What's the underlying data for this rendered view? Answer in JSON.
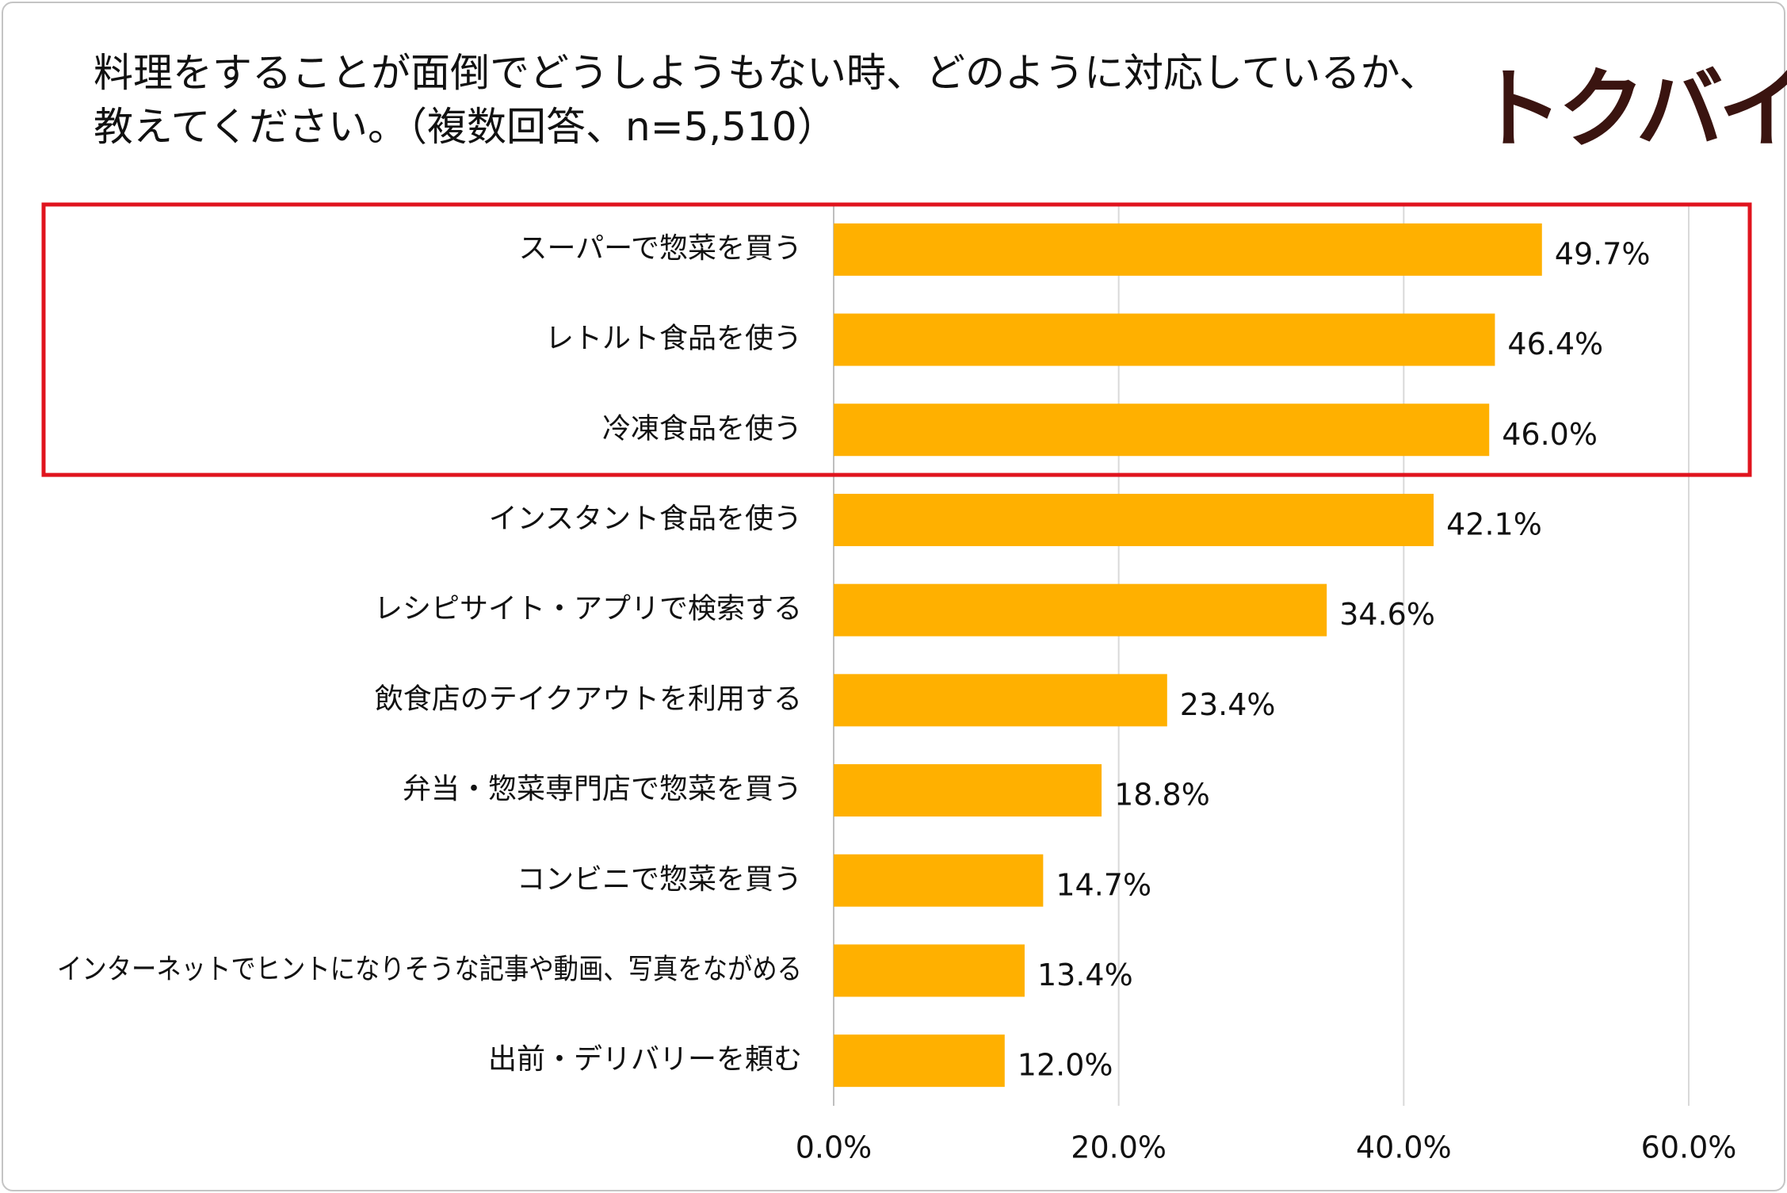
{
  "title": {
    "line1": "料理をすることが面倒でどうしようもない時、どのように対応しているか、",
    "line2": "教えてください。（複数回答、n=5,510）"
  },
  "logo": {
    "text": "トクバイ"
  },
  "colors": {
    "bar": "#FFB000",
    "highlight_box": "#E0141E",
    "grid": "#D9D9D9",
    "axis": "#BFBFBF",
    "text": "#111111"
  },
  "highlight": {
    "first_index": 0,
    "last_index": 2
  },
  "chart_data": {
    "type": "bar",
    "orientation": "horizontal",
    "categories": [
      "スーパーで惣菜を買う",
      "レトルト食品を使う",
      "冷凍食品を使う",
      "インスタント食品を使う",
      "レシピサイト・アプリで検索する",
      "飲食店のテイクアウトを利用する",
      "弁当・惣菜専門店で惣菜を買う",
      "コンビニで惣菜を買う",
      "インターネットでヒントになりそうな記事や動画、写真をながめる",
      "出前・デリバリーを頼む"
    ],
    "values": [
      49.7,
      46.4,
      46.0,
      42.1,
      34.6,
      23.4,
      18.8,
      14.7,
      13.4,
      12.0
    ],
    "value_labels": [
      "49.7%",
      "46.4%",
      "46.0%",
      "42.1%",
      "34.6%",
      "23.4%",
      "18.8%",
      "14.7%",
      "13.4%",
      "12.0%"
    ],
    "xlim": [
      0,
      60
    ],
    "x_ticks": [
      0,
      20,
      40,
      60
    ],
    "x_tick_labels": [
      "0.0%",
      "20.0%",
      "40.0%",
      "60.0%"
    ],
    "grid": true,
    "legend": "none"
  }
}
